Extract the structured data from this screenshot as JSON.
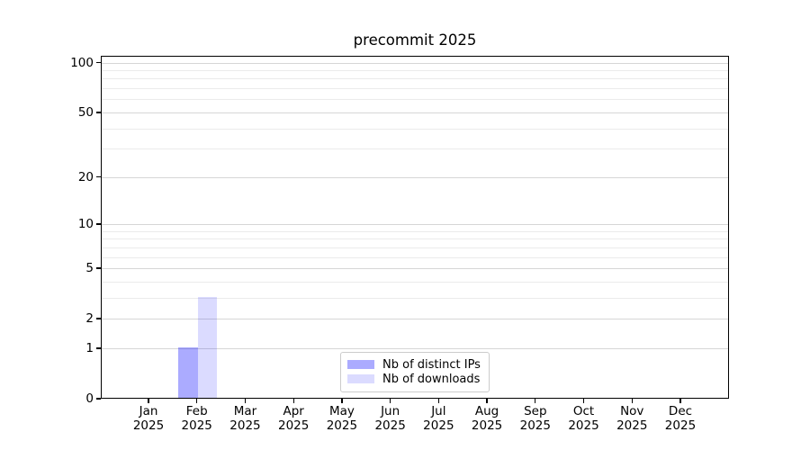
{
  "chart_data": {
    "type": "bar",
    "title": "precommit 2025",
    "categories": [
      "Jan 2025",
      "Feb 2025",
      "Mar 2025",
      "Apr 2025",
      "May 2025",
      "Jun 2025",
      "Jul 2025",
      "Aug 2025",
      "Sep 2025",
      "Oct 2025",
      "Nov 2025",
      "Dec 2025"
    ],
    "series": [
      {
        "name": "Nb of distinct IPs",
        "color": "#0000ff",
        "alpha": 0.33,
        "values": [
          0,
          1,
          0,
          0,
          0,
          0,
          0,
          0,
          0,
          0,
          0,
          0
        ]
      },
      {
        "name": "Nb of downloads",
        "color": "#0000ff",
        "alpha": 0.14,
        "values": [
          0,
          3,
          0,
          0,
          0,
          0,
          0,
          0,
          0,
          0,
          0,
          0
        ]
      }
    ],
    "xlabel": "",
    "ylabel": "",
    "y_scale": "log1p",
    "ylim": [
      0,
      110
    ],
    "y_major_ticks": [
      0,
      1,
      2,
      5,
      10,
      20,
      50,
      100
    ],
    "y_minor_gridlines": [
      3,
      4,
      6,
      7,
      8,
      9,
      30,
      40,
      60,
      70,
      80,
      90
    ],
    "grid": true,
    "legend_position": "lower center",
    "colors": {
      "background": "#ffffff",
      "spine": "#000000",
      "major_grid": "#d6d6d6",
      "minor_grid": "#ebebeb",
      "text": "#000000",
      "legend_border": "#cccccc"
    }
  }
}
